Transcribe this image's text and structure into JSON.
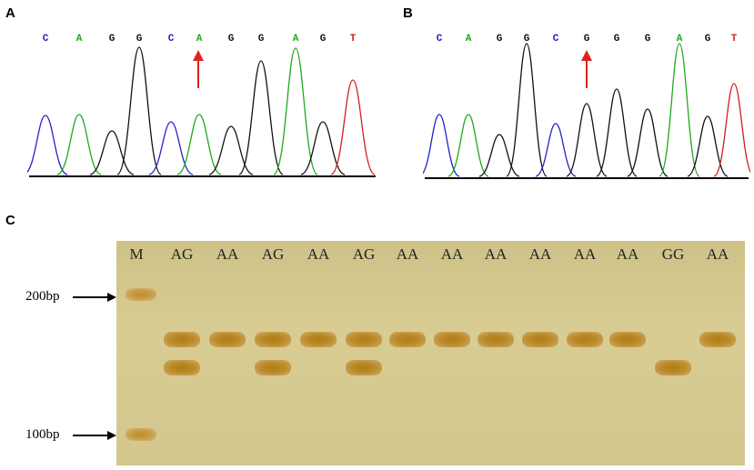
{
  "panels": {
    "a": {
      "letter": "A",
      "bases": [
        "C",
        "A",
        "G",
        "G",
        "C",
        "A",
        "G",
        "G",
        "A",
        "G",
        "T"
      ]
    },
    "b": {
      "letter": "B",
      "bases": [
        "C",
        "A",
        "G",
        "G",
        "C",
        "G",
        "G",
        "G",
        "A",
        "G",
        "T"
      ]
    },
    "c": {
      "letter": "C",
      "lanes": [
        "M",
        "AG",
        "AA",
        "AG",
        "AA",
        "AG",
        "AA",
        "AA",
        "AA",
        "AA",
        "AA",
        "AA",
        "GG",
        "AA"
      ],
      "markers": [
        "200bp",
        "100bp"
      ]
    }
  },
  "colors": {
    "C": "#2323c8",
    "A": "#1fa81f",
    "G": "#111111",
    "T": "#d21e1e",
    "arrow": "#e0221e"
  }
}
